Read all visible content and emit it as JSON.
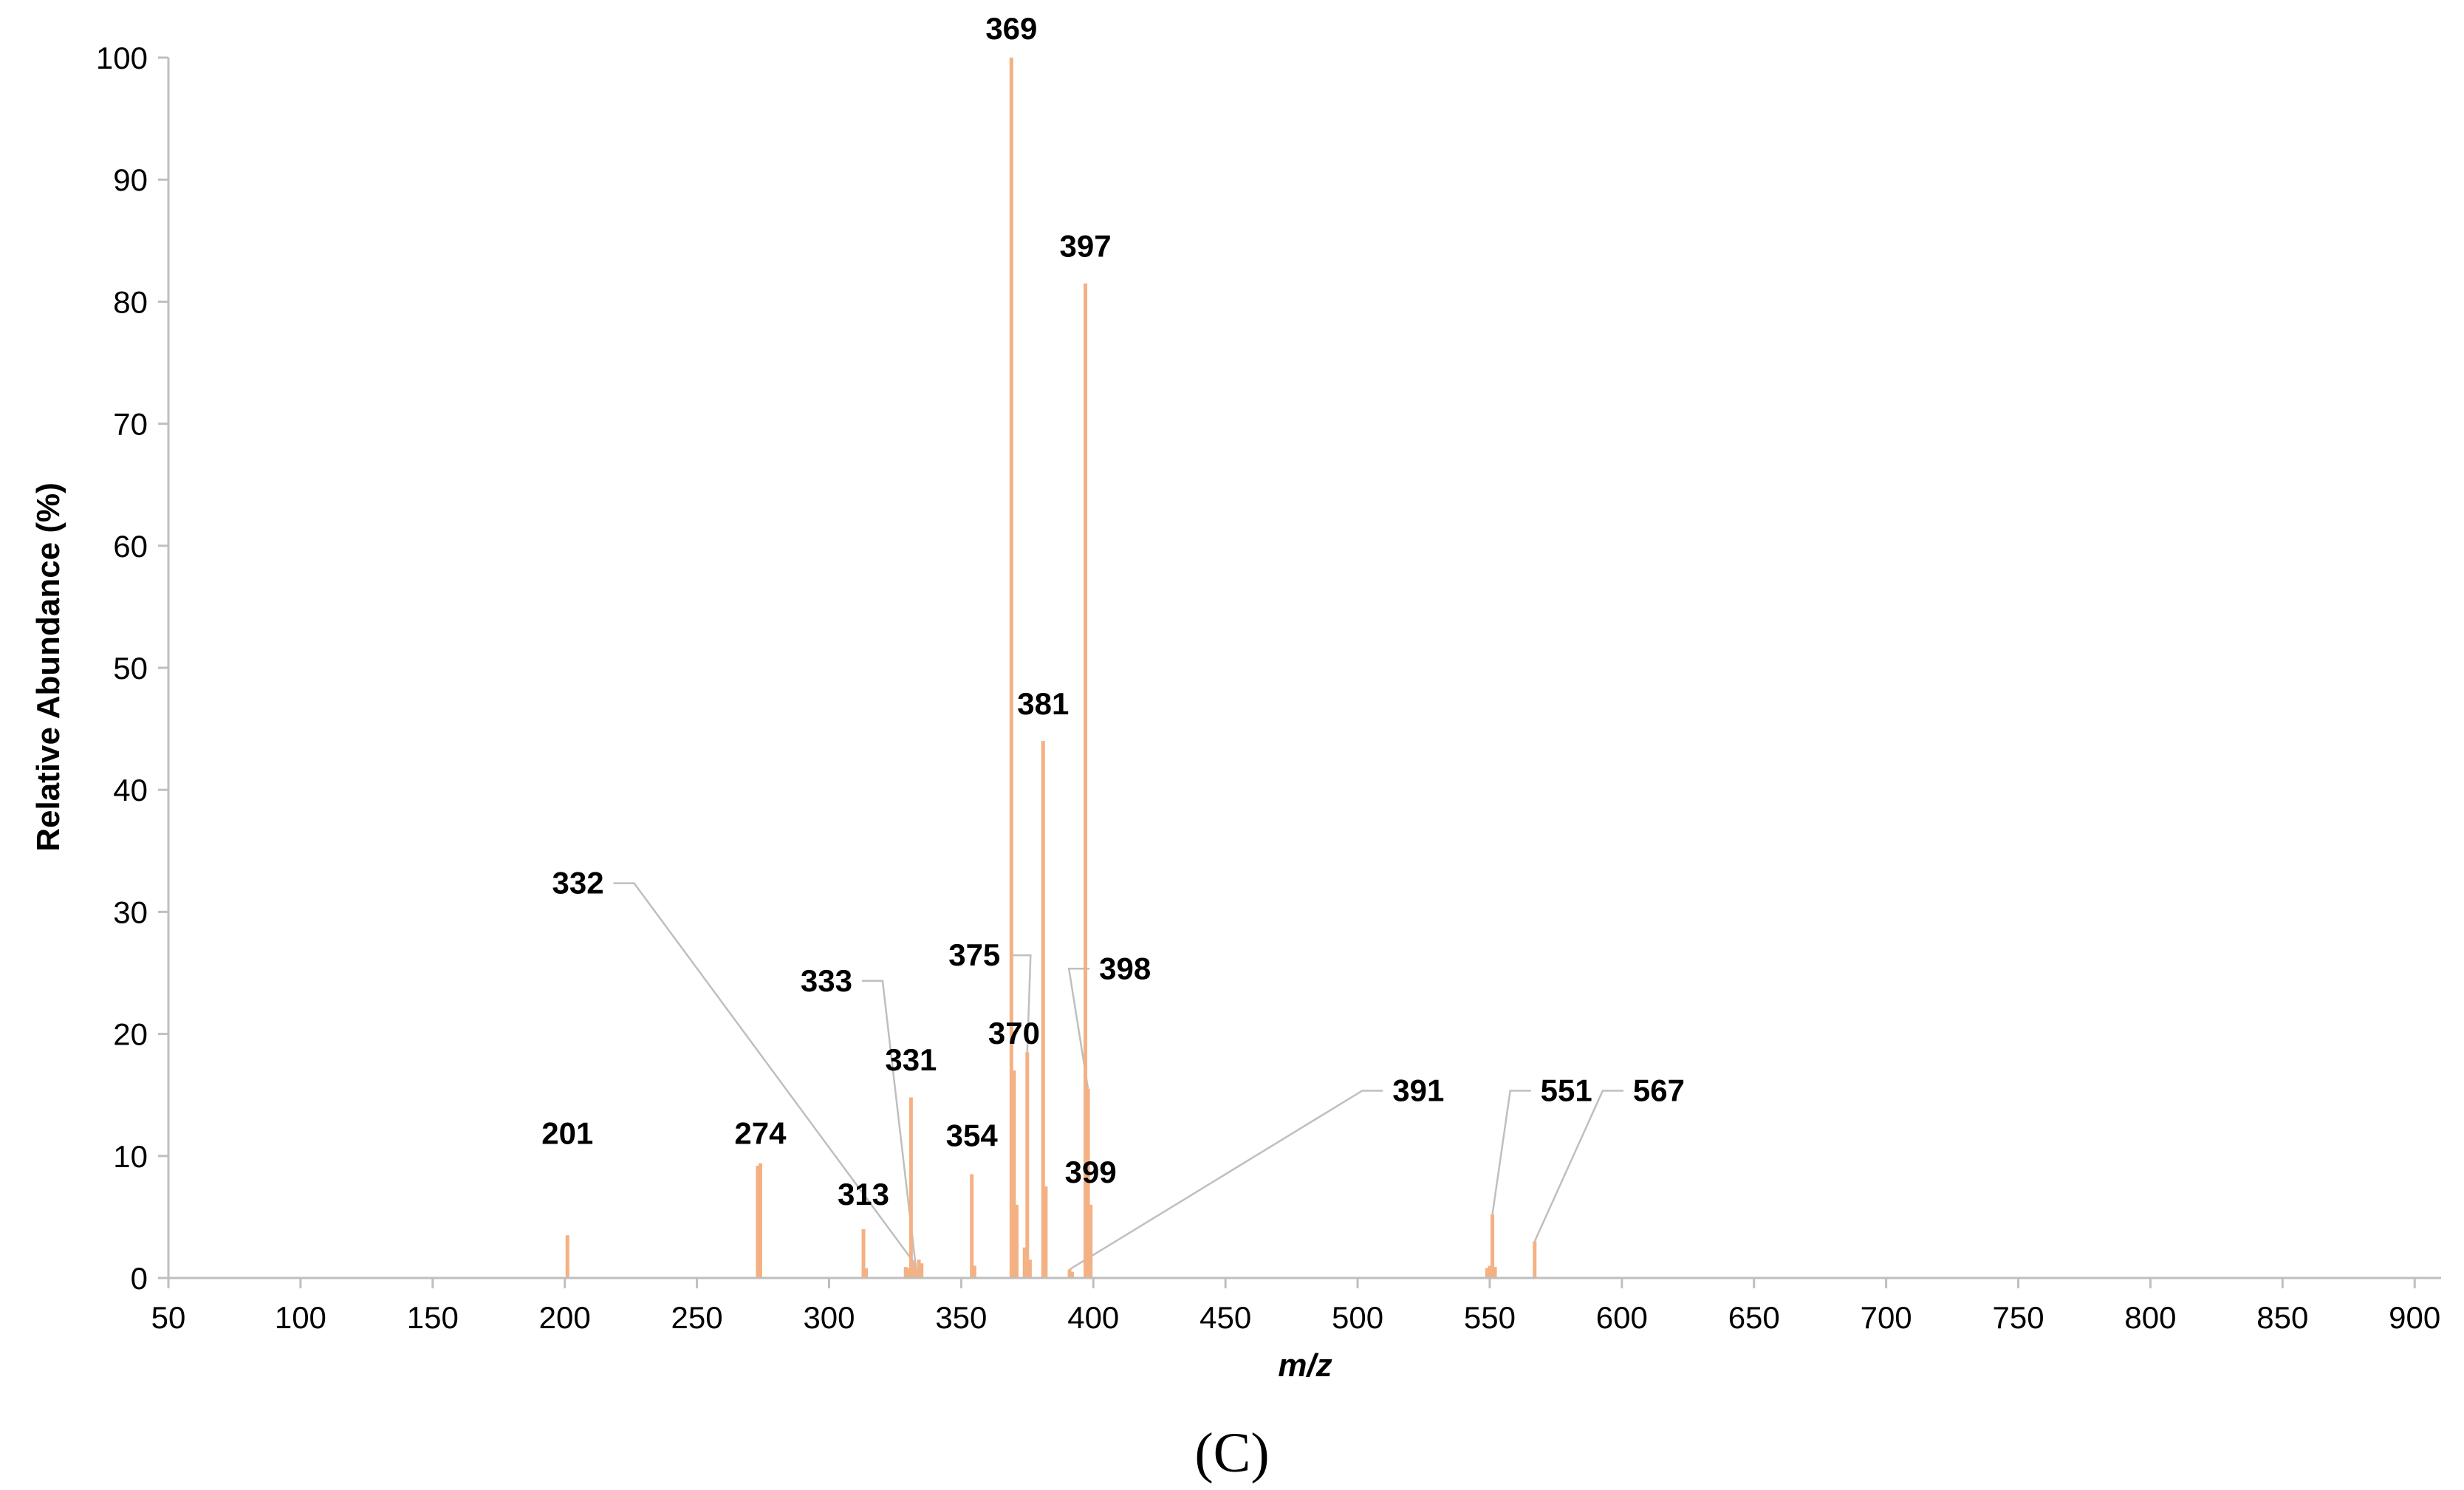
{
  "chart_data": {
    "type": "bar",
    "subtype": "mass-spectrum",
    "xlabel": "m/z",
    "ylabel": "Relative Abundance (%)",
    "xlim": [
      50,
      910
    ],
    "ylim": [
      0,
      100
    ],
    "xticks": [
      50,
      100,
      150,
      200,
      250,
      300,
      350,
      400,
      450,
      500,
      550,
      600,
      650,
      700,
      750,
      800,
      850,
      900
    ],
    "yticks": [
      0,
      10,
      20,
      30,
      40,
      50,
      60,
      70,
      80,
      90,
      100
    ],
    "grid": false,
    "bar_color": "#f4b183",
    "leader_color": "#bfbfbf",
    "peaks": [
      {
        "x": 201,
        "y": 3.5
      },
      {
        "x": 273,
        "y": 9.2
      },
      {
        "x": 274,
        "y": 9.4
      },
      {
        "x": 313,
        "y": 4.0
      },
      {
        "x": 314,
        "y": 0.8
      },
      {
        "x": 329,
        "y": 0.9
      },
      {
        "x": 330,
        "y": 0.8
      },
      {
        "x": 331,
        "y": 14.8
      },
      {
        "x": 332,
        "y": 1.3
      },
      {
        "x": 333,
        "y": 0.6
      },
      {
        "x": 334,
        "y": 1.5
      },
      {
        "x": 335,
        "y": 1.2
      },
      {
        "x": 354,
        "y": 8.5
      },
      {
        "x": 355,
        "y": 1.0
      },
      {
        "x": 369,
        "y": 100
      },
      {
        "x": 370,
        "y": 17.0
      },
      {
        "x": 371,
        "y": 6.0
      },
      {
        "x": 374,
        "y": 2.5
      },
      {
        "x": 375,
        "y": 18.5
      },
      {
        "x": 376,
        "y": 1.5
      },
      {
        "x": 381,
        "y": 44.0
      },
      {
        "x": 382,
        "y": 7.5
      },
      {
        "x": 391,
        "y": 0.7
      },
      {
        "x": 392,
        "y": 0.5
      },
      {
        "x": 397,
        "y": 81.5
      },
      {
        "x": 398,
        "y": 15.5
      },
      {
        "x": 399,
        "y": 6.0
      },
      {
        "x": 549,
        "y": 0.8
      },
      {
        "x": 550,
        "y": 1.0
      },
      {
        "x": 551,
        "y": 5.2
      },
      {
        "x": 552,
        "y": 0.9
      },
      {
        "x": 567,
        "y": 3.0
      }
    ],
    "annotations": [
      {
        "text": "201",
        "x": 201,
        "y": 3.5,
        "label_x": 201,
        "label_y": 11
      },
      {
        "text": "274",
        "x": 274,
        "y": 9.4,
        "label_x": 274,
        "label_y": 11
      },
      {
        "text": "313",
        "x": 313,
        "y": 4.0,
        "label_x": 313,
        "label_y": 6
      },
      {
        "text": "331",
        "x": 331,
        "y": 14.8,
        "label_x": 331,
        "label_y": 17
      },
      {
        "text": "332",
        "x": 332,
        "y": 1.3,
        "label_x": 205,
        "label_y": 31.5,
        "leader": true
      },
      {
        "text": "333",
        "x": 333,
        "y": 0.6,
        "label_x": 299,
        "label_y": 23.5,
        "leader": true
      },
      {
        "text": "354",
        "x": 354,
        "y": 8.5,
        "label_x": 354,
        "label_y": 10.8
      },
      {
        "text": "369",
        "x": 369,
        "y": 100,
        "label_x": 369,
        "label_y": 101.5
      },
      {
        "text": "370",
        "x": 370,
        "y": 17.0,
        "label_x": 370,
        "label_y": 19.2
      },
      {
        "text": "375",
        "x": 375,
        "y": 18.5,
        "label_x": 355,
        "label_y": 25.6,
        "leader": true
      },
      {
        "text": "381",
        "x": 381,
        "y": 44.0,
        "label_x": 381,
        "label_y": 46.2
      },
      {
        "text": "391",
        "x": 391,
        "y": 0.7,
        "label_x": 523,
        "label_y": 14.5,
        "leader": true
      },
      {
        "text": "397",
        "x": 397,
        "y": 81.5,
        "label_x": 397,
        "label_y": 83.7
      },
      {
        "text": "398",
        "x": 398,
        "y": 15.5,
        "label_x": 412,
        "label_y": 24.5,
        "leader": true
      },
      {
        "text": "399",
        "x": 399,
        "y": 6.0,
        "label_x": 399,
        "label_y": 7.8
      },
      {
        "text": "551",
        "x": 551,
        "y": 5.2,
        "label_x": 579,
        "label_y": 14.5,
        "leader": true
      },
      {
        "text": "567",
        "x": 567,
        "y": 3.0,
        "label_x": 614,
        "label_y": 14.5,
        "leader": true
      }
    ]
  },
  "panel_label": "(C)"
}
